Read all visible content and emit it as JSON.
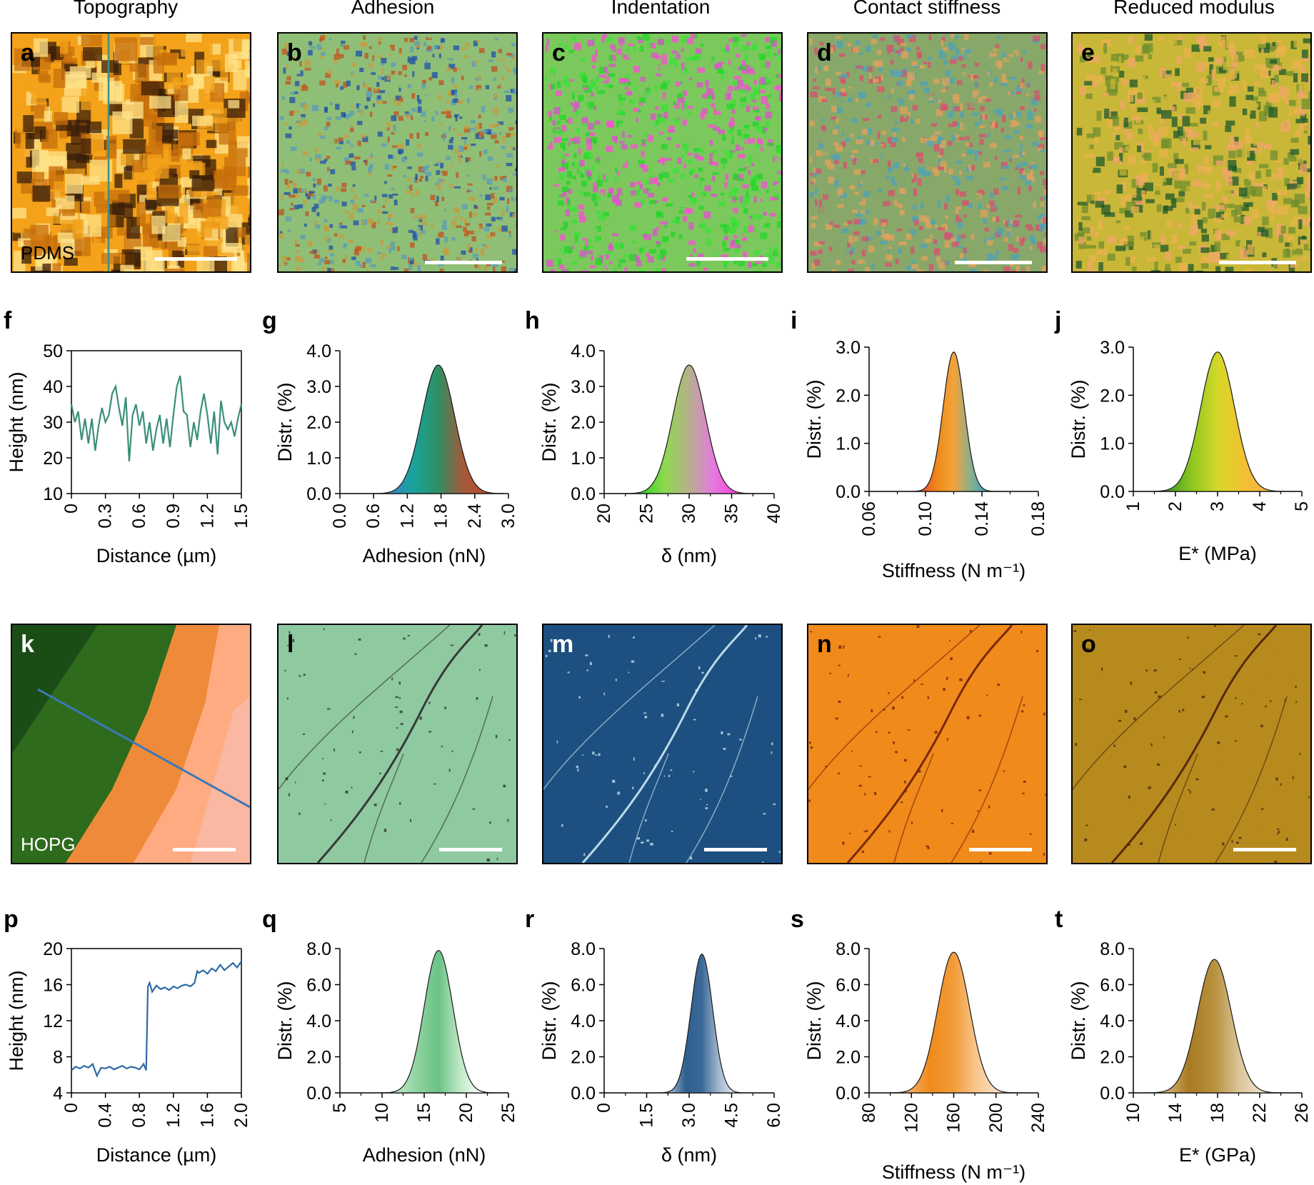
{
  "column_titles": [
    "Topography",
    "Adhesion",
    "Indentation",
    "Contact stiffness",
    "Reduced modulus"
  ],
  "maps_top": {
    "letters": [
      "a",
      "b",
      "c",
      "d",
      "e"
    ],
    "sample_label": "PDMS",
    "colors": {
      "topography": [
        "#3a1d08",
        "#c76f0c",
        "#f3a21a",
        "#ffe38a"
      ],
      "adhesion": [
        "#1f4fa8",
        "#5b9bb8",
        "#8fbf77",
        "#c79b3d",
        "#c2521e"
      ],
      "indentation": [
        "#22d42a",
        "#3be038",
        "#7bc95c",
        "#e24ed1",
        "#ff4ad8"
      ],
      "stiffness": [
        "#d94f6f",
        "#e6a25b",
        "#88a86a",
        "#4ea3b8"
      ],
      "modulus": [
        "#1e5a2b",
        "#6f8f2e",
        "#c9b738",
        "#e9b24e",
        "#f2a66a"
      ]
    }
  },
  "maps_bottom": {
    "letters": [
      "k",
      "l",
      "m",
      "n",
      "o"
    ],
    "sample_label": "HOPG",
    "colors": {
      "topography": [
        "#1a4d16",
        "#2e6b1d",
        "#f08a3b",
        "#ffab82",
        "#f7c0b5"
      ],
      "adhesion": [
        "#8fc9a0",
        "#2b2b2b"
      ],
      "indentation": [
        "#1d4f80",
        "#cde9f2"
      ],
      "stiffness": [
        "#f08a1a",
        "#6b1d0a"
      ],
      "modulus": [
        "#b78a1e",
        "#4a1f08"
      ]
    }
  },
  "chart_data": [
    {
      "id": "f",
      "type": "line",
      "letter": "f",
      "xlabel": "Distance (µm)",
      "ylabel": "Height (nm)",
      "xlim": [
        0,
        1.5
      ],
      "ylim": [
        10,
        50
      ],
      "xticks": [
        "0",
        "0.3",
        "0.6",
        "0.9",
        "1.2",
        "1.5"
      ],
      "yticks": [
        "10",
        "20",
        "30",
        "40",
        "50"
      ],
      "color": "#3a8f7a",
      "x": [
        0,
        0.03,
        0.06,
        0.09,
        0.12,
        0.15,
        0.18,
        0.21,
        0.24,
        0.27,
        0.3,
        0.33,
        0.36,
        0.39,
        0.42,
        0.45,
        0.48,
        0.51,
        0.54,
        0.57,
        0.6,
        0.63,
        0.66,
        0.69,
        0.72,
        0.75,
        0.78,
        0.81,
        0.84,
        0.87,
        0.9,
        0.93,
        0.96,
        0.99,
        1.02,
        1.05,
        1.08,
        1.11,
        1.14,
        1.17,
        1.2,
        1.23,
        1.26,
        1.29,
        1.32,
        1.35,
        1.38,
        1.41,
        1.44,
        1.47,
        1.5
      ],
      "y": [
        35,
        30,
        33,
        25,
        31,
        24,
        31,
        22,
        29,
        34,
        30,
        32,
        38,
        40,
        34,
        29,
        37,
        19,
        32,
        35,
        29,
        33,
        24,
        30,
        22,
        28,
        32,
        24,
        31,
        23,
        32,
        40,
        43,
        33,
        32,
        23,
        30,
        25,
        33,
        38,
        32,
        24,
        33,
        21,
        36,
        30,
        28,
        30,
        26,
        31,
        35
      ]
    },
    {
      "id": "g",
      "type": "area",
      "letter": "g",
      "xlabel": "Adhesion (nN)",
      "ylabel": "Distr. (%)",
      "xlim": [
        0,
        3.0
      ],
      "ylim": [
        0,
        4.0
      ],
      "xticks": [
        "0.0",
        "0.6",
        "1.2",
        "1.8",
        "2.4",
        "3.0"
      ],
      "yticks": [
        "0.0",
        "1.0",
        "2.0",
        "3.0",
        "4.0"
      ],
      "mean": 1.75,
      "sd": 0.29,
      "peak": 3.6,
      "gradient": [
        "#3a86c8",
        "#1aa39a",
        "#2f8f63",
        "#a35a3c",
        "#c04a2a"
      ]
    },
    {
      "id": "h",
      "type": "area",
      "letter": "h",
      "xlabel": "δ (nm)",
      "ylabel": "Distr. (%)",
      "xlim": [
        20,
        40
      ],
      "ylim": [
        0,
        4.0
      ],
      "xticks": [
        "20",
        "25",
        "30",
        "35",
        "40"
      ],
      "yticks": [
        "0.0",
        "1.0",
        "2.0",
        "3.0",
        "4.0"
      ],
      "mean": 30,
      "sd": 1.9,
      "peak": 3.6,
      "gradient": [
        "#2fd32a",
        "#8fd84e",
        "#b6b08c",
        "#e57ae0",
        "#ff3fd6"
      ]
    },
    {
      "id": "i",
      "type": "area",
      "letter": "i",
      "xlabel": "Stiffness (N m⁻¹)",
      "ylabel": "Distr. (%)",
      "xlim": [
        0.06,
        0.18
      ],
      "ylim": [
        0,
        3.0
      ],
      "xticks": [
        "0.06",
        "0.10",
        "0.14",
        "0.18"
      ],
      "yticks": [
        "0.0",
        "1.0",
        "2.0",
        "3.0"
      ],
      "mean": 0.12,
      "sd": 0.0075,
      "peak": 2.9,
      "gradient": [
        "#e8542a",
        "#f08a1a",
        "#f2a33a",
        "#8fae8a",
        "#3fa6c0"
      ]
    },
    {
      "id": "j",
      "type": "area",
      "letter": "j",
      "xlabel": "E* (MPa)",
      "ylabel": "Distr. (%)",
      "xlim": [
        1,
        5
      ],
      "ylim": [
        0,
        3.0
      ],
      "xticks": [
        "1",
        "2",
        "3",
        "4",
        "5"
      ],
      "yticks": [
        "0.0",
        "1.0",
        "2.0",
        "3.0"
      ],
      "mean": 3.0,
      "sd": 0.4,
      "peak": 2.9,
      "gradient": [
        "#3f9a25",
        "#8fc81f",
        "#d5d82a",
        "#f2c230",
        "#f5b04a"
      ]
    },
    {
      "id": "p",
      "type": "line",
      "letter": "p",
      "xlabel": "Distance (µm)",
      "ylabel": "Height (nm)",
      "xlim": [
        0,
        2.0
      ],
      "ylim": [
        4,
        20
      ],
      "xticks": [
        "0",
        "0.4",
        "0.8",
        "1.2",
        "1.6",
        "2.0"
      ],
      "yticks": [
        "4",
        "8",
        "12",
        "16",
        "20"
      ],
      "color": "#2f6aa6",
      "x": [
        0,
        0.05,
        0.1,
        0.15,
        0.2,
        0.25,
        0.3,
        0.35,
        0.4,
        0.45,
        0.5,
        0.55,
        0.6,
        0.65,
        0.7,
        0.75,
        0.8,
        0.85,
        0.88,
        0.9,
        0.92,
        0.95,
        1.0,
        1.05,
        1.1,
        1.15,
        1.2,
        1.25,
        1.3,
        1.35,
        1.4,
        1.45,
        1.48,
        1.5,
        1.55,
        1.6,
        1.65,
        1.7,
        1.75,
        1.8,
        1.85,
        1.9,
        1.95,
        2.0
      ],
      "y": [
        6.5,
        6.9,
        6.7,
        7.0,
        6.8,
        7.2,
        5.9,
        6.8,
        6.7,
        6.9,
        6.6,
        6.8,
        7.0,
        6.7,
        6.9,
        6.8,
        6.6,
        7.2,
        6.5,
        15.8,
        16.2,
        15.2,
        15.9,
        15.5,
        15.7,
        15.4,
        15.8,
        15.6,
        15.9,
        16.0,
        15.8,
        16.2,
        17.5,
        17.3,
        17.6,
        17.2,
        17.8,
        17.5,
        18.2,
        17.6,
        18.0,
        18.4,
        17.9,
        18.6
      ]
    },
    {
      "id": "q",
      "type": "area",
      "letter": "q",
      "xlabel": "Adhesion (nN)",
      "ylabel": "Distr. (%)",
      "xlim": [
        5,
        25
      ],
      "ylim": [
        0,
        8.0
      ],
      "xticks": [
        "5",
        "10",
        "15",
        "20",
        "25"
      ],
      "yticks": [
        "0.0",
        "2.0",
        "4.0",
        "6.0",
        "8.0"
      ],
      "mean": 16.7,
      "sd": 1.7,
      "peak": 7.9,
      "gradient": [
        "#bfe9c6",
        "#8fd3a0",
        "#6cc287",
        "#bfe9c6",
        "#ffffff"
      ]
    },
    {
      "id": "r",
      "type": "area",
      "letter": "r",
      "xlabel": "δ (nm)",
      "ylabel": "Distr. (%)",
      "xlim": [
        0,
        6.0
      ],
      "ylim": [
        0,
        8.0
      ],
      "xticks": [
        "0",
        "1.5",
        "3.0",
        "4.5",
        "6.0"
      ],
      "yticks": [
        "0.0",
        "2.0",
        "4.0",
        "6.0",
        "8.0"
      ],
      "mean": 3.45,
      "sd": 0.38,
      "peak": 7.7,
      "gradient": [
        "#9fb4cc",
        "#2f5f8f",
        "#3b6a99",
        "#9fb4cc",
        "#dfe7f0"
      ]
    },
    {
      "id": "s",
      "type": "area",
      "letter": "s",
      "xlabel": "Stiffness (N m⁻¹)",
      "ylabel": "Distr. (%)",
      "xlim": [
        80,
        240
      ],
      "ylim": [
        0,
        8.0
      ],
      "xticks": [
        "80",
        "120",
        "160",
        "200",
        "240"
      ],
      "yticks": [
        "0.0",
        "2.0",
        "4.0",
        "6.0",
        "8.0"
      ],
      "mean": 160,
      "sd": 15,
      "peak": 7.8,
      "gradient": [
        "#f7b070",
        "#f08a1a",
        "#f39c3a",
        "#f8c890",
        "#fde6cf"
      ]
    },
    {
      "id": "t",
      "type": "area",
      "letter": "t",
      "xlabel": "E* (GPa)",
      "ylabel": "Distr. (%)",
      "xlim": [
        10,
        26
      ],
      "ylim": [
        0,
        8.0
      ],
      "xticks": [
        "10",
        "14",
        "18",
        "22",
        "26"
      ],
      "yticks": [
        "0.0",
        "2.0",
        "4.0",
        "6.0",
        "8.0"
      ],
      "mean": 17.7,
      "sd": 1.6,
      "peak": 7.4,
      "gradient": [
        "#d9b57a",
        "#a87a22",
        "#b8913f",
        "#dcc59a",
        "#f0e6d2"
      ]
    }
  ]
}
